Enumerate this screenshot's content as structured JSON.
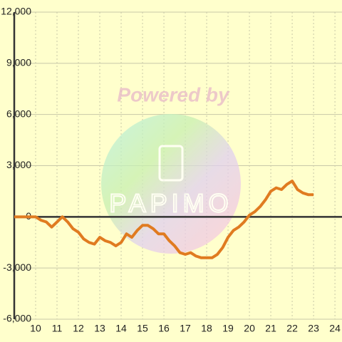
{
  "chart_data": {
    "type": "line",
    "watermark": {
      "text": "Powered by",
      "logo": "PAPIMO"
    },
    "xlim": [
      9,
      24.33
    ],
    "xticks": [
      10,
      11,
      12,
      13,
      14,
      15,
      16,
      17,
      18,
      19,
      20,
      21,
      22,
      23,
      24
    ],
    "ylim": [
      -6000,
      12000
    ],
    "yticks": [
      {
        "value": -6000,
        "label": "-6,000"
      },
      {
        "value": -3000,
        "label": "-3,000"
      },
      0,
      {
        "value": 3000,
        "label": "3,000"
      },
      {
        "value": 6000,
        "label": "6,000"
      },
      {
        "value": 9000,
        "label": "9,000"
      },
      {
        "value": 12000,
        "label": "12,000"
      }
    ],
    "grid": true,
    "x": [
      9,
      10,
      10.25,
      10.5,
      10.75,
      11,
      11.25,
      11.5,
      11.75,
      12,
      12.25,
      12.5,
      12.75,
      13,
      13.25,
      13.5,
      13.75,
      14,
      14.25,
      14.5,
      14.75,
      15,
      15.25,
      15.5,
      15.75,
      16,
      16.25,
      16.5,
      16.75,
      17,
      17.25,
      17.5,
      17.75,
      18,
      18.25,
      18.5,
      18.75,
      19,
      19.25,
      19.5,
      19.75,
      20,
      20.25,
      20.5,
      20.75,
      21,
      21.25,
      21.5,
      21.75,
      22,
      22.25,
      22.5,
      22.75,
      23
    ],
    "series": [
      {
        "color": "#e07b20",
        "values": [
          0,
          0,
          -200,
          -300,
          -600,
          -300,
          0,
          -300,
          -700,
          -900,
          -1300,
          -1500,
          -1600,
          -1200,
          -1400,
          -1500,
          -1700,
          -1500,
          -1000,
          -1200,
          -800,
          -500,
          -500,
          -700,
          -1000,
          -1000,
          -1400,
          -1700,
          -2100,
          -2200,
          -2100,
          -2300,
          -2400,
          -2400,
          -2400,
          -2200,
          -1800,
          -1200,
          -800,
          -600,
          -300,
          100,
          300,
          600,
          1000,
          1500,
          1700,
          1600,
          1900,
          2100,
          1600,
          1400,
          1300,
          1300
        ]
      }
    ]
  }
}
